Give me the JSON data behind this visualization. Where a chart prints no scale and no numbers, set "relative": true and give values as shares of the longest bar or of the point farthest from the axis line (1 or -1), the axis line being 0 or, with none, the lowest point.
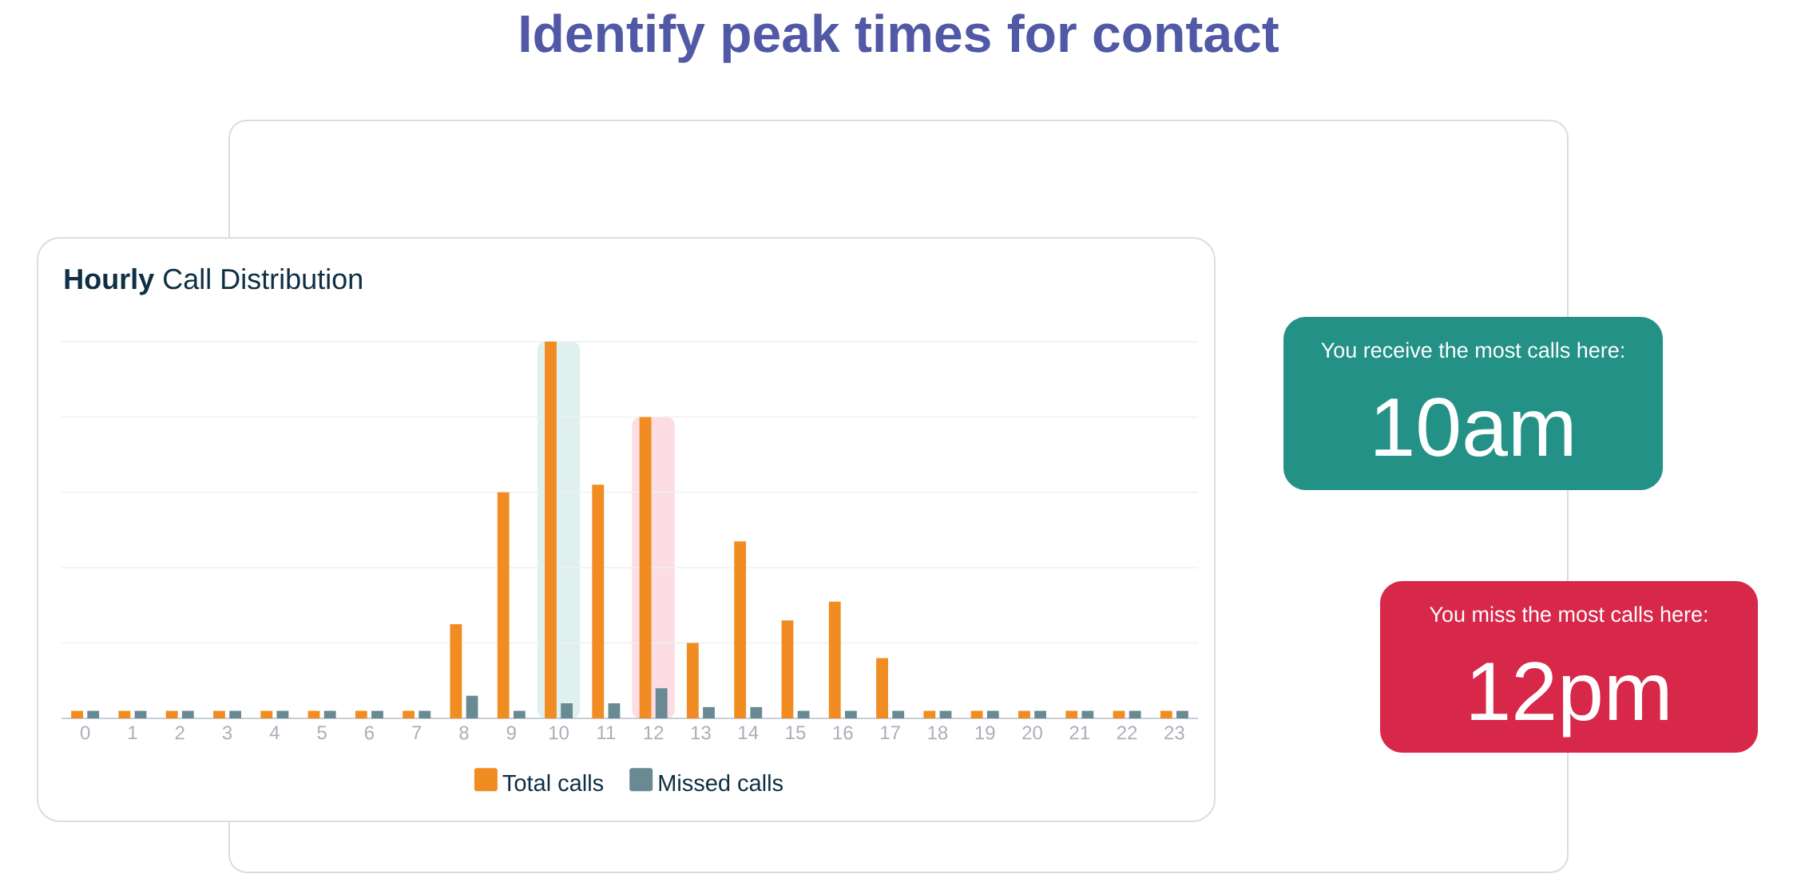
{
  "chart_data": {
    "type": "bar",
    "title": "Identify peak times for contact",
    "subtitle": "**Hourly** Call Distribution",
    "x": [
      0,
      1,
      2,
      3,
      4,
      5,
      6,
      7,
      8,
      9,
      10,
      11,
      12,
      13,
      14,
      15,
      16,
      17,
      18,
      19,
      20,
      21,
      22,
      23
    ],
    "xlim": [
      -0.5,
      23.5
    ],
    "xticks": [
      0,
      1,
      2,
      3,
      4,
      5,
      6,
      7,
      8,
      9,
      10,
      11,
      12,
      13,
      14,
      15,
      16,
      17,
      18,
      19,
      20,
      21,
      22,
      23
    ],
    "relative": true,
    "series": [
      {
        "name": "Total calls",
        "color": "#f08c22",
        "values": [
          0.02,
          0.02,
          0.02,
          0.02,
          0.02,
          0.02,
          0.02,
          0.02,
          0.25,
          0.6,
          1,
          0.62,
          0.8,
          0.2,
          0.47,
          0.26,
          0.31,
          0.16,
          0.02,
          0.02,
          0.02,
          0.02,
          0.02,
          0.02
        ]
      },
      {
        "name": "Missed calls",
        "color": "#698a93",
        "values": [
          0.02,
          0.02,
          0.02,
          0.02,
          0.02,
          0.02,
          0.02,
          0.02,
          0.06,
          0.02,
          0.04,
          0.04,
          0.08,
          0.03,
          0.03,
          0.02,
          0.02,
          0.02,
          0.02,
          0.02,
          0.02,
          0.02,
          0.02,
          0.02
        ]
      }
    ],
    "bands": [
      {
        "axis": "x",
        "from": 9.55,
        "to": 10.45,
        "color": "#dff0ee"
      },
      {
        "axis": "x",
        "from": 11.55,
        "to": 12.45,
        "color": "#fbdde3"
      }
    ],
    "grid": "y",
    "legend": "bottom",
    "annotations": [
      "You receive the most calls here:",
      "10am",
      "You miss the most calls here:",
      "12pm"
    ]
  }
}
